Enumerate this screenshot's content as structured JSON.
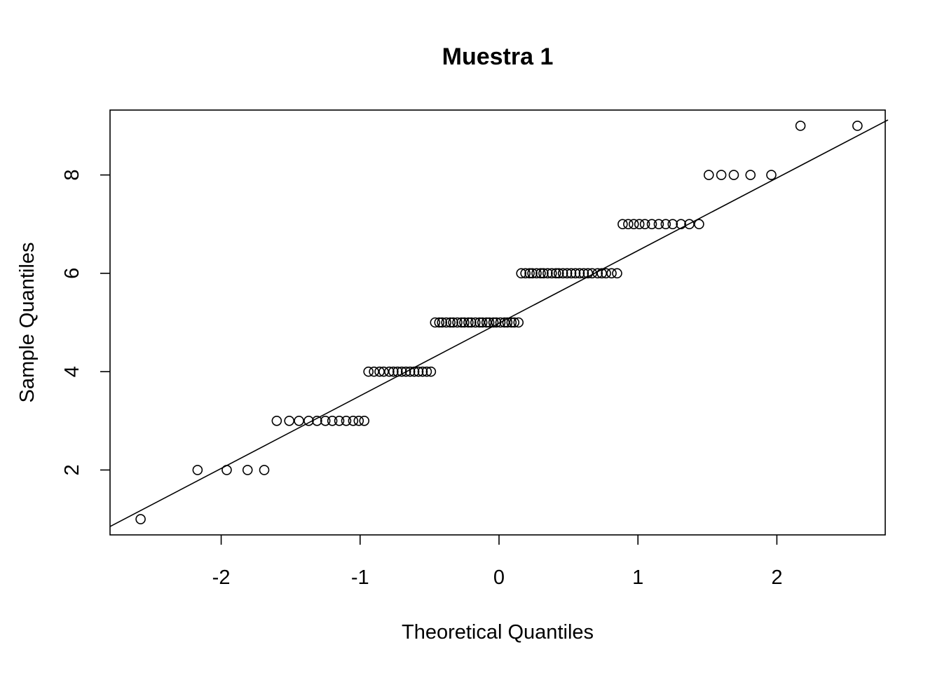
{
  "chart_data": {
    "type": "scatter",
    "title": "Muestra 1",
    "xlabel": "Theoretical Quantiles",
    "ylabel": "Sample Quantiles",
    "x_ticks": [
      -2,
      -1,
      0,
      1,
      2
    ],
    "x_tick_labels": [
      "-2",
      "-1",
      "0",
      "1",
      "2"
    ],
    "y_ticks": [
      2,
      4,
      6,
      8
    ],
    "y_tick_labels": [
      "2",
      "4",
      "6",
      "8"
    ],
    "xlim": [
      -2.8,
      2.78
    ],
    "ylim": [
      0.68,
      9.32
    ],
    "grid": false,
    "reference_line": {
      "x": [
        -2.8,
        2.8
      ],
      "y": [
        0.85,
        9.12
      ]
    },
    "series": [
      {
        "points": [
          {
            "x": -2.58,
            "y": 1
          },
          {
            "x": -2.17,
            "y": 2
          },
          {
            "x": -1.96,
            "y": 2
          },
          {
            "x": -1.81,
            "y": 2
          },
          {
            "x": -1.69,
            "y": 2
          },
          {
            "x": -1.6,
            "y": 3
          },
          {
            "x": -1.51,
            "y": 3
          },
          {
            "x": -1.44,
            "y": 3
          },
          {
            "x": -1.37,
            "y": 3
          },
          {
            "x": -1.31,
            "y": 3
          },
          {
            "x": -1.25,
            "y": 3
          },
          {
            "x": -1.2,
            "y": 3
          },
          {
            "x": -1.15,
            "y": 3
          },
          {
            "x": -1.1,
            "y": 3
          },
          {
            "x": -1.05,
            "y": 3
          },
          {
            "x": -1.01,
            "y": 3
          },
          {
            "x": -0.97,
            "y": 3
          },
          {
            "x": -0.94,
            "y": 4
          },
          {
            "x": -0.9,
            "y": 4
          },
          {
            "x": -0.86,
            "y": 4
          },
          {
            "x": -0.83,
            "y": 4
          },
          {
            "x": -0.79,
            "y": 4
          },
          {
            "x": -0.76,
            "y": 4
          },
          {
            "x": -0.73,
            "y": 4
          },
          {
            "x": -0.7,
            "y": 4
          },
          {
            "x": -0.67,
            "y": 4
          },
          {
            "x": -0.64,
            "y": 4
          },
          {
            "x": -0.61,
            "y": 4
          },
          {
            "x": -0.58,
            "y": 4
          },
          {
            "x": -0.55,
            "y": 4
          },
          {
            "x": -0.52,
            "y": 4
          },
          {
            "x": -0.49,
            "y": 4
          },
          {
            "x": -0.46,
            "y": 5
          },
          {
            "x": -0.43,
            "y": 5
          },
          {
            "x": -0.41,
            "y": 5
          },
          {
            "x": -0.38,
            "y": 5
          },
          {
            "x": -0.35,
            "y": 5
          },
          {
            "x": -0.33,
            "y": 5
          },
          {
            "x": -0.3,
            "y": 5
          },
          {
            "x": -0.27,
            "y": 5
          },
          {
            "x": -0.25,
            "y": 5
          },
          {
            "x": -0.22,
            "y": 5
          },
          {
            "x": -0.2,
            "y": 5
          },
          {
            "x": -0.17,
            "y": 5
          },
          {
            "x": -0.14,
            "y": 5
          },
          {
            "x": -0.12,
            "y": 5
          },
          {
            "x": -0.09,
            "y": 5
          },
          {
            "x": -0.07,
            "y": 5
          },
          {
            "x": -0.04,
            "y": 5
          },
          {
            "x": -0.02,
            "y": 5
          },
          {
            "x": 0.01,
            "y": 5
          },
          {
            "x": 0.04,
            "y": 5
          },
          {
            "x": 0.06,
            "y": 5
          },
          {
            "x": 0.09,
            "y": 5
          },
          {
            "x": 0.11,
            "y": 5
          },
          {
            "x": 0.14,
            "y": 5
          },
          {
            "x": 0.16,
            "y": 6
          },
          {
            "x": 0.19,
            "y": 6
          },
          {
            "x": 0.22,
            "y": 6
          },
          {
            "x": 0.24,
            "y": 6
          },
          {
            "x": 0.27,
            "y": 6
          },
          {
            "x": 0.3,
            "y": 6
          },
          {
            "x": 0.32,
            "y": 6
          },
          {
            "x": 0.35,
            "y": 6
          },
          {
            "x": 0.38,
            "y": 6
          },
          {
            "x": 0.41,
            "y": 6
          },
          {
            "x": 0.43,
            "y": 6
          },
          {
            "x": 0.46,
            "y": 6
          },
          {
            "x": 0.49,
            "y": 6
          },
          {
            "x": 0.52,
            "y": 6
          },
          {
            "x": 0.55,
            "y": 6
          },
          {
            "x": 0.58,
            "y": 6
          },
          {
            "x": 0.61,
            "y": 6
          },
          {
            "x": 0.64,
            "y": 6
          },
          {
            "x": 0.67,
            "y": 6
          },
          {
            "x": 0.71,
            "y": 6
          },
          {
            "x": 0.74,
            "y": 6
          },
          {
            "x": 0.77,
            "y": 6
          },
          {
            "x": 0.81,
            "y": 6
          },
          {
            "x": 0.85,
            "y": 6
          },
          {
            "x": 0.89,
            "y": 7
          },
          {
            "x": 0.93,
            "y": 7
          },
          {
            "x": 0.97,
            "y": 7
          },
          {
            "x": 1.01,
            "y": 7
          },
          {
            "x": 1.05,
            "y": 7
          },
          {
            "x": 1.1,
            "y": 7
          },
          {
            "x": 1.15,
            "y": 7
          },
          {
            "x": 1.2,
            "y": 7
          },
          {
            "x": 1.25,
            "y": 7
          },
          {
            "x": 1.31,
            "y": 7
          },
          {
            "x": 1.37,
            "y": 7
          },
          {
            "x": 1.44,
            "y": 7
          },
          {
            "x": 1.51,
            "y": 8
          },
          {
            "x": 1.6,
            "y": 8
          },
          {
            "x": 1.69,
            "y": 8
          },
          {
            "x": 1.81,
            "y": 8
          },
          {
            "x": 1.96,
            "y": 8
          },
          {
            "x": 2.17,
            "y": 9
          },
          {
            "x": 2.58,
            "y": 9
          }
        ]
      }
    ]
  }
}
